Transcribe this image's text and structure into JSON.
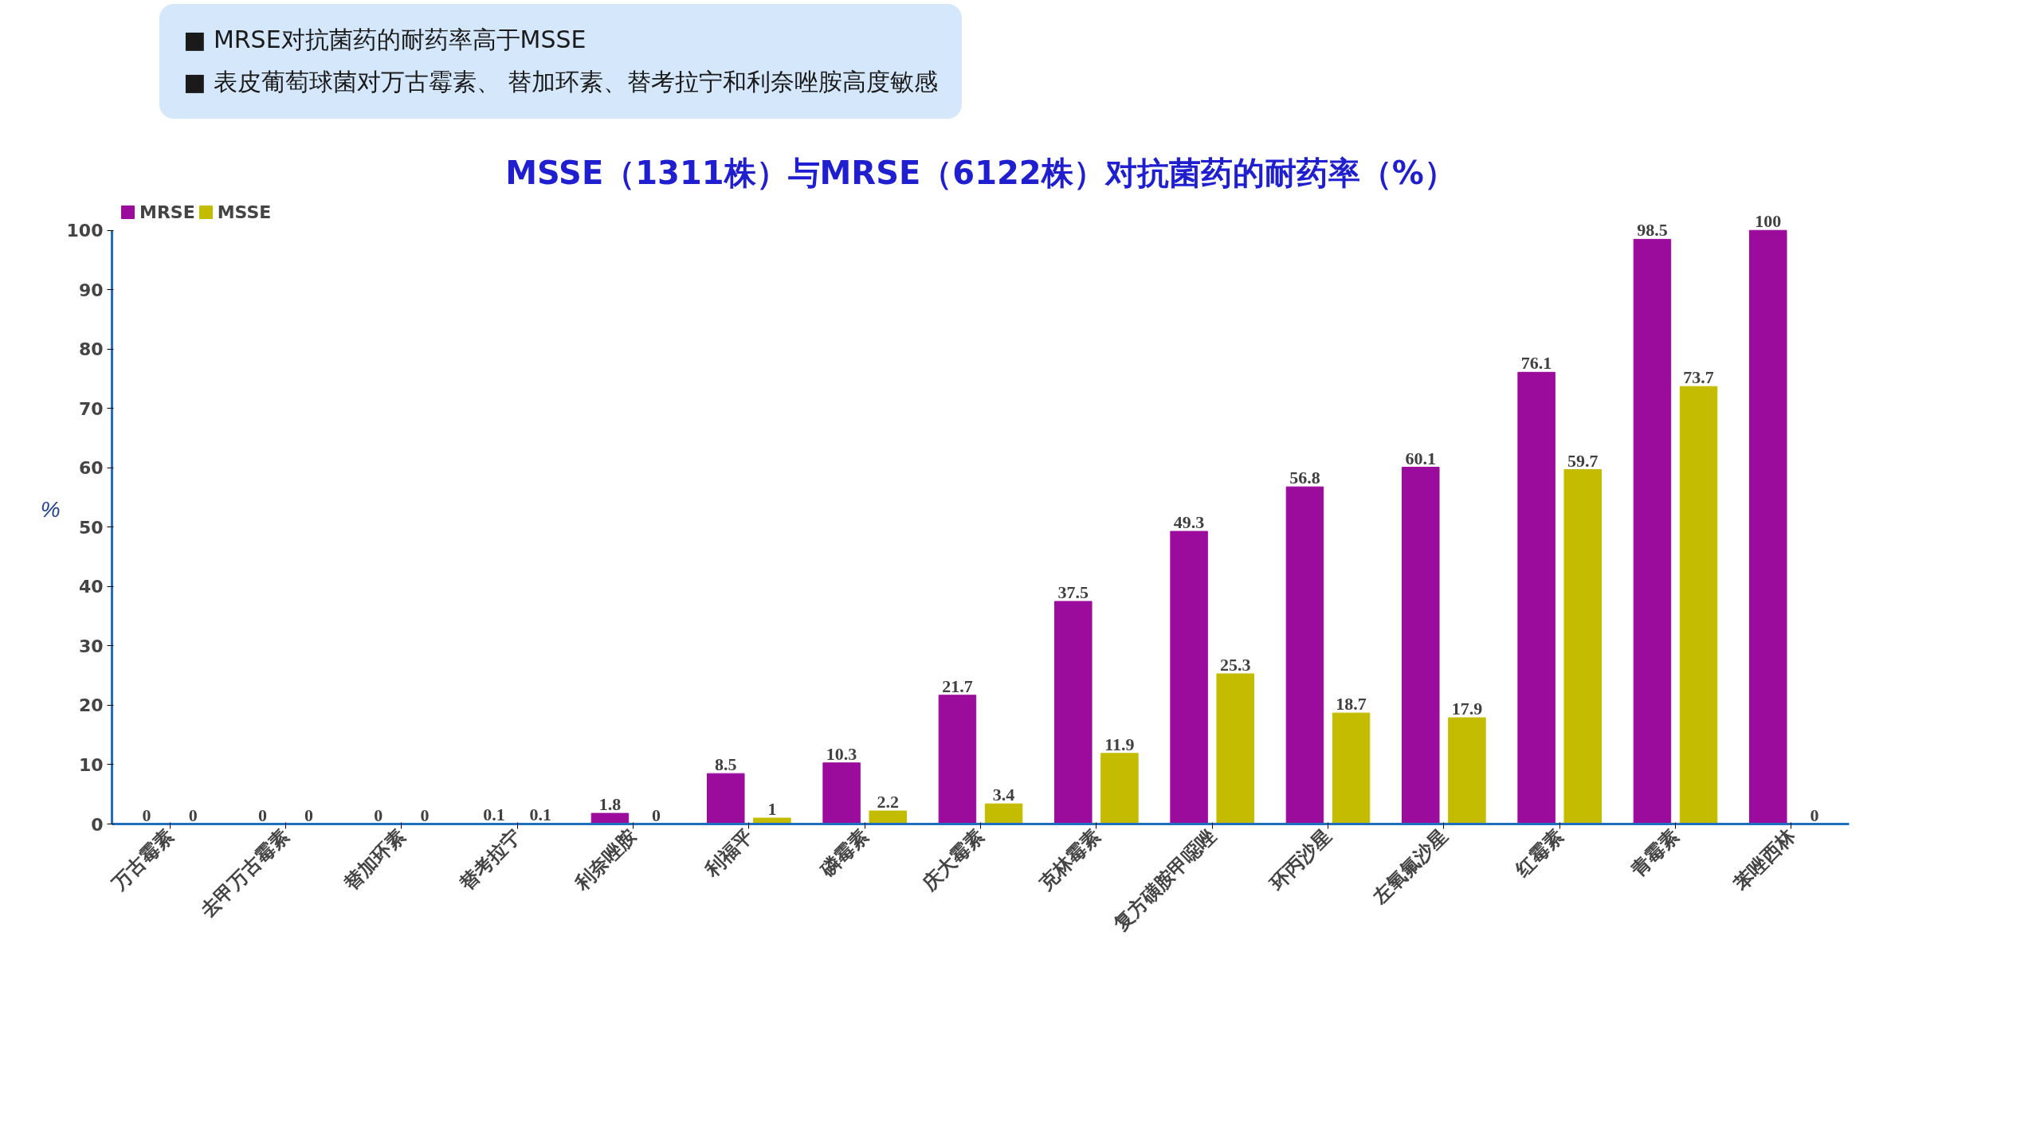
{
  "chart_data": {
    "type": "bar",
    "title": "MSSE（1311株）与MRSE（6122株）对抗菌药的耐药率（%）",
    "categories": [
      "万古霉素",
      "去甲万古霉素",
      "替加环素",
      "替考拉宁",
      "利奈唑胺",
      "利福平",
      "磷霉素",
      "庆大霉素",
      "克林霉素",
      "复方磺胺甲噁唑",
      "环丙沙星",
      "左氧氟沙星",
      "红霉素",
      "青霉素",
      "苯唑西林"
    ],
    "series": [
      {
        "name": "MRSE",
        "color": "#9c0c9c",
        "values": [
          0,
          0,
          0,
          0.1,
          1.8,
          8.5,
          10.3,
          21.7,
          37.5,
          49.3,
          56.8,
          60.1,
          76.1,
          98.5,
          100
        ]
      },
      {
        "name": "MSSE",
        "color": "#c4bc00",
        "values": [
          0,
          0,
          0,
          0.1,
          0,
          1,
          2.2,
          3.4,
          11.9,
          25.3,
          18.7,
          17.9,
          59.7,
          73.7,
          0
        ]
      }
    ],
    "ylabel": "%",
    "ylim": [
      0,
      100
    ],
    "yticks": [
      0,
      10,
      20,
      30,
      40,
      50,
      60,
      70,
      80,
      90,
      100
    ],
    "annotations": [
      "■ MRSE对抗菌药的耐药率高于MSSE",
      "■ 表皮葡萄球菌对万古霉素、 替加环素、替考拉宁和利奈唑胺高度敏感"
    ],
    "data_labels": true,
    "legend": "top left",
    "grid": false
  }
}
